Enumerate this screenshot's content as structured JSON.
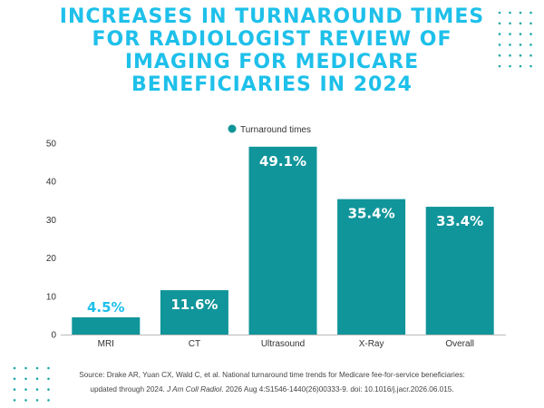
{
  "title_lines": [
    "INCREASES IN TURNAROUND TIMES",
    "FOR RADIOLOGIST REVIEW OF",
    "IMAGING FOR MEDICARE",
    "BENEFICIARIES IN 2024"
  ],
  "colors": {
    "title": "#1ec0ea",
    "bar": "#10959a",
    "label_inside": "#ffffff",
    "label_outside": "#1ec0ea",
    "dots": "#1fa7a8"
  },
  "chart_data": {
    "type": "bar",
    "categories": [
      "MRI",
      "CT",
      "Ultrasound",
      "X-Ray",
      "Overall"
    ],
    "series": [
      {
        "name": "Turnaround times",
        "values": [
          4.5,
          11.6,
          49.1,
          35.4,
          33.4
        ]
      }
    ],
    "data_labels": [
      "4.5%",
      "11.6%",
      "49.1%",
      "35.4%",
      "33.4%"
    ],
    "ylim": [
      0,
      50
    ],
    "yticks": [
      0,
      10,
      20,
      30,
      40,
      50
    ],
    "grid": false,
    "legend": "top-center"
  },
  "source": {
    "line1": "Source: Drake AR, Yuan CX, Wald C, et al. National turnaround time trends for Medicare fee-for-service beneficiaries:",
    "line2_prefix": "updated through 2024. ",
    "journal": "J Am Coll Radiol",
    "line2_suffix": ". 2026 Aug 4:S1546-1440(26)00333-9. doi: 10.1016/j.jacr.2026.06.015."
  }
}
